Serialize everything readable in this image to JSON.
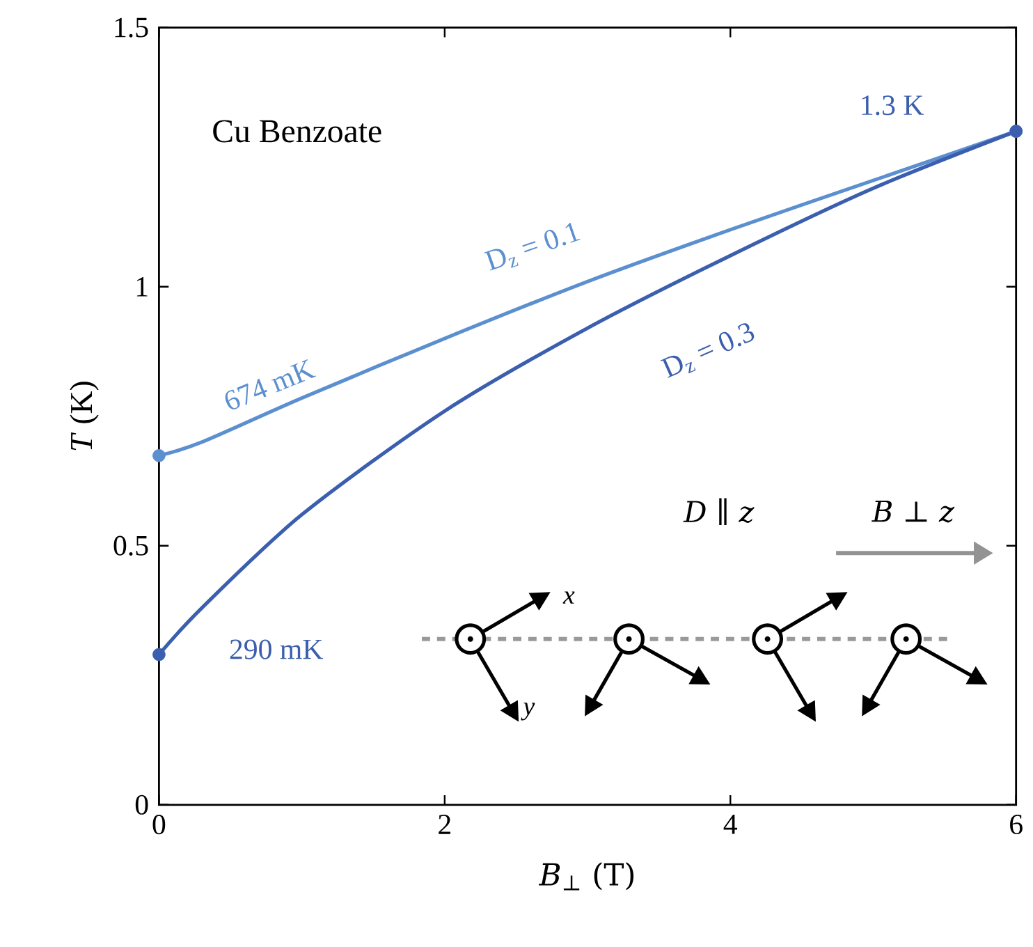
{
  "chart_data": {
    "type": "line",
    "xlabel": "*B*$_{⊥}$ (T)",
    "ylabel": "*T* (K)",
    "xlim": [
      0,
      6
    ],
    "ylim": [
      0,
      1.5
    ],
    "xticks": [
      0,
      2,
      4,
      6
    ],
    "yticks": [
      0,
      0.5,
      1,
      1.5
    ],
    "series": [
      {
        "name": "D$_{z}$ = 0.1",
        "color": "#5b8fcf",
        "x": [
          0,
          0.3,
          1,
          2,
          3,
          4,
          5,
          6
        ],
        "values": [
          0.674,
          0.7,
          0.785,
          0.9,
          1.01,
          1.11,
          1.205,
          1.3
        ]
      },
      {
        "name": "D$_{z}$ = 0.3",
        "color": "#3b5fae",
        "x": [
          0,
          0.3,
          1,
          2,
          3,
          4,
          5,
          6
        ],
        "values": [
          0.29,
          0.38,
          0.56,
          0.76,
          0.92,
          1.06,
          1.19,
          1.3
        ]
      }
    ],
    "annotations": [
      "Cu Benzoate",
      "674 mK",
      "290 mK",
      "1.3 K",
      "*D* ∥ *z*",
      "*B* ⊥ *z*",
      "*x*",
      "*y*"
    ]
  }
}
